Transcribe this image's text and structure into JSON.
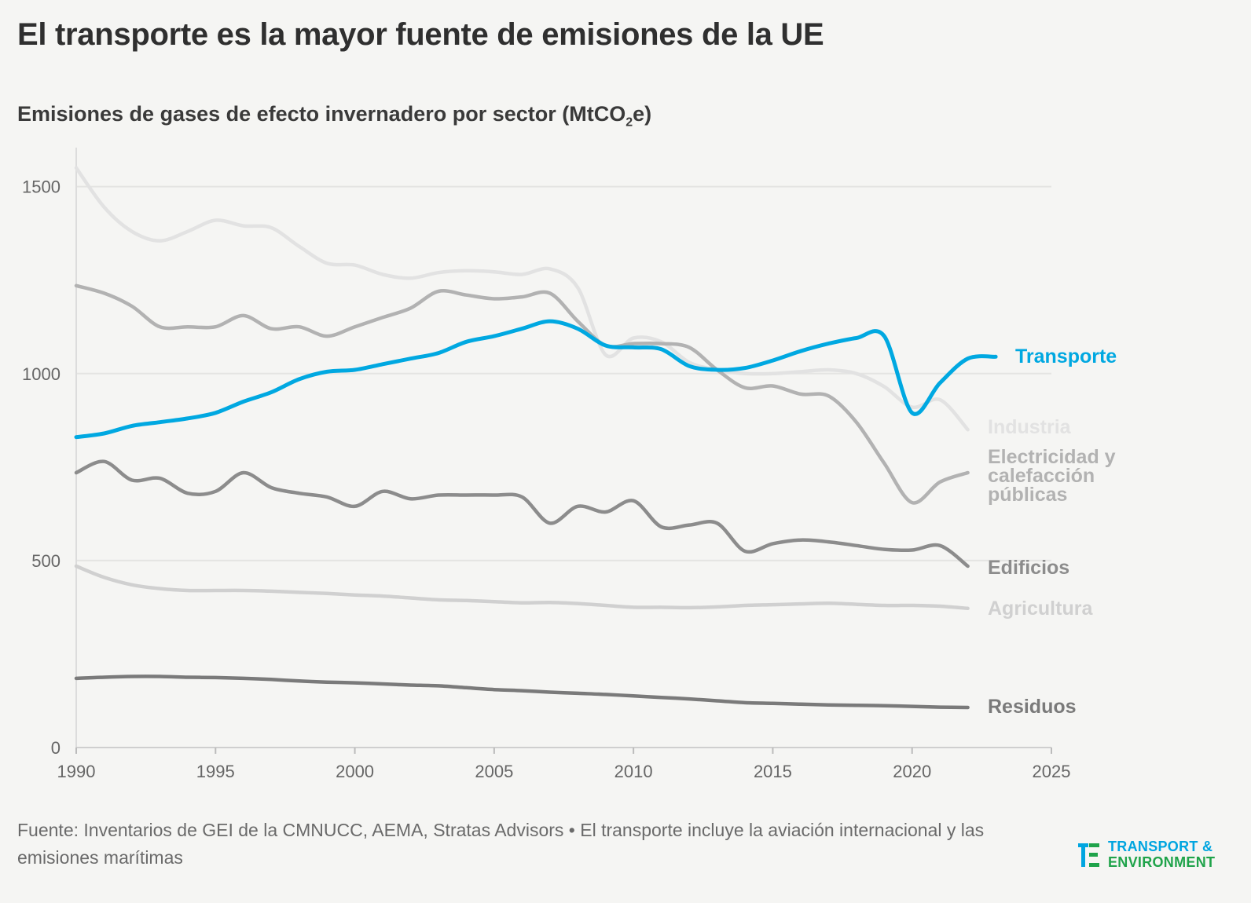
{
  "title": "El transporte es la mayor fuente de emisiones de la UE",
  "subtitle": {
    "main": "Emisiones de gases de efecto invernadero por sector (MtCO",
    "sub": "2",
    "end": "e)"
  },
  "source": "Fuente: Inventarios de GEI de la CMNUCC, AEMA, Stratas Advisors • El transporte incluye la aviación internacional y las emisiones marítimas",
  "logo": {
    "line1": "TRANSPORT &",
    "line2": "ENVIRONMENT",
    "colors": {
      "blue": "#00a5e0",
      "green": "#1fa34a"
    }
  },
  "chart_data": {
    "type": "line",
    "xlim": [
      1990,
      2025
    ],
    "ylim": [
      0,
      1600
    ],
    "x_ticks": [
      "1990",
      "1995",
      "2000",
      "2005",
      "2010",
      "2015",
      "2020",
      "2025"
    ],
    "y_ticks": [
      "0",
      "500",
      "1000",
      "1500"
    ],
    "grid": true,
    "series": [
      {
        "name": "Industria",
        "color": "#e2e2e2",
        "label_lines": [
          "Industria"
        ],
        "x": [
          1990,
          1991,
          1992,
          1993,
          1994,
          1995,
          1996,
          1997,
          1998,
          1999,
          2000,
          2001,
          2002,
          2003,
          2004,
          2005,
          2006,
          2007,
          2008,
          2009,
          2010,
          2011,
          2012,
          2013,
          2014,
          2015,
          2016,
          2017,
          2018,
          2019,
          2020,
          2021,
          2022
        ],
        "values": [
          1550,
          1445,
          1380,
          1355,
          1380,
          1410,
          1395,
          1390,
          1340,
          1295,
          1290,
          1265,
          1255,
          1270,
          1275,
          1272,
          1265,
          1280,
          1230,
          1050,
          1095,
          1085,
          1030,
          1010,
          1000,
          1000,
          1005,
          1010,
          1000,
          965,
          910,
          930,
          850
        ]
      },
      {
        "name": "Electricidad y calefacción públicas",
        "color": "#b2b2b2",
        "label_lines": [
          "Electricidad y",
          "calefacción",
          "públicas"
        ],
        "x": [
          1990,
          1991,
          1992,
          1993,
          1994,
          1995,
          1996,
          1997,
          1998,
          1999,
          2000,
          2001,
          2002,
          2003,
          2004,
          2005,
          2006,
          2007,
          2008,
          2009,
          2010,
          2011,
          2012,
          2013,
          2014,
          2015,
          2016,
          2017,
          2018,
          2019,
          2020,
          2021,
          2022
        ],
        "values": [
          1235,
          1215,
          1180,
          1125,
          1125,
          1125,
          1155,
          1120,
          1125,
          1100,
          1125,
          1150,
          1175,
          1220,
          1210,
          1200,
          1205,
          1215,
          1140,
          1075,
          1080,
          1080,
          1070,
          1010,
          962,
          967,
          945,
          940,
          870,
          760,
          655,
          710,
          735
        ]
      },
      {
        "name": "Transporte",
        "color": "#00a8e1",
        "label_lines": [
          "Transporte"
        ],
        "x": [
          1990,
          1991,
          1992,
          1993,
          1994,
          1995,
          1996,
          1997,
          1998,
          1999,
          2000,
          2001,
          2002,
          2003,
          2004,
          2005,
          2006,
          2007,
          2008,
          2009,
          2010,
          2011,
          2012,
          2013,
          2014,
          2015,
          2016,
          2017,
          2018,
          2019,
          2020,
          2021,
          2022,
          2023
        ],
        "values": [
          830,
          840,
          860,
          870,
          880,
          895,
          925,
          950,
          985,
          1005,
          1010,
          1025,
          1040,
          1055,
          1085,
          1100,
          1120,
          1140,
          1120,
          1075,
          1070,
          1065,
          1020,
          1010,
          1015,
          1035,
          1060,
          1080,
          1095,
          1100,
          895,
          975,
          1040,
          1045
        ]
      },
      {
        "name": "Edificios",
        "color": "#8c8c8c",
        "label_lines": [
          "Edificios"
        ],
        "x": [
          1990,
          1991,
          1992,
          1993,
          1994,
          1995,
          1996,
          1997,
          1998,
          1999,
          2000,
          2001,
          2002,
          2003,
          2004,
          2005,
          2006,
          2007,
          2008,
          2009,
          2010,
          2011,
          2012,
          2013,
          2014,
          2015,
          2016,
          2017,
          2018,
          2019,
          2020,
          2021,
          2022
        ],
        "values": [
          735,
          765,
          715,
          720,
          680,
          685,
          735,
          695,
          680,
          670,
          645,
          685,
          665,
          675,
          675,
          675,
          670,
          600,
          645,
          630,
          660,
          590,
          595,
          600,
          525,
          545,
          555,
          550,
          540,
          530,
          528,
          540,
          485
        ]
      },
      {
        "name": "Agricultura",
        "color": "#d0d0d0",
        "label_lines": [
          "Agricultura"
        ],
        "x": [
          1990,
          1991,
          1992,
          1993,
          1994,
          1995,
          1996,
          1997,
          1998,
          1999,
          2000,
          2001,
          2002,
          2003,
          2004,
          2005,
          2006,
          2007,
          2008,
          2009,
          2010,
          2011,
          2012,
          2013,
          2014,
          2015,
          2016,
          2017,
          2018,
          2019,
          2020,
          2021,
          2022
        ],
        "values": [
          485,
          455,
          435,
          425,
          420,
          420,
          420,
          418,
          415,
          412,
          408,
          405,
          400,
          395,
          393,
          390,
          387,
          388,
          385,
          380,
          375,
          375,
          374,
          376,
          380,
          382,
          384,
          386,
          383,
          380,
          380,
          378,
          372
        ]
      },
      {
        "name": "Residuos",
        "color": "#7a7a7a",
        "label_lines": [
          "Residuos"
        ],
        "x": [
          1990,
          1991,
          1992,
          1993,
          1994,
          1995,
          1996,
          1997,
          1998,
          1999,
          2000,
          2001,
          2002,
          2003,
          2004,
          2005,
          2006,
          2007,
          2008,
          2009,
          2010,
          2011,
          2012,
          2013,
          2014,
          2015,
          2016,
          2017,
          2018,
          2019,
          2020,
          2021,
          2022
        ],
        "values": [
          185,
          188,
          190,
          190,
          188,
          187,
          185,
          182,
          178,
          175,
          173,
          170,
          167,
          165,
          160,
          155,
          152,
          148,
          145,
          142,
          138,
          134,
          130,
          125,
          120,
          118,
          116,
          114,
          113,
          112,
          110,
          108,
          107
        ]
      }
    ]
  }
}
